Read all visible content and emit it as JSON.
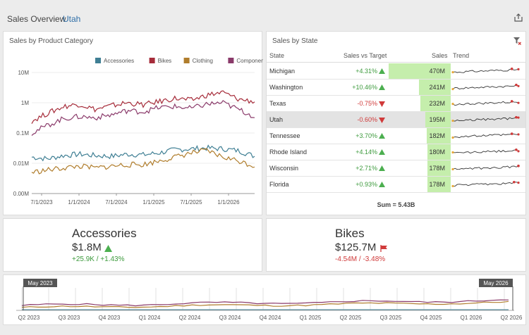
{
  "header": {
    "title": "Sales Overview",
    "filter": "Utah"
  },
  "category_panel": {
    "title": "Sales by Product Category",
    "chart_data": {
      "type": "line",
      "scale": "log",
      "ylim": [
        "0.00M",
        "10M"
      ],
      "y_ticks": [
        "10M",
        "1M",
        "0.1M",
        "0.01M",
        "0.00M"
      ],
      "x_ticks": [
        "7/1/2023",
        "1/1/2024",
        "7/1/2024",
        "1/1/2025",
        "7/1/2025",
        "1/1/2026"
      ],
      "legend_position": "top-right",
      "series": [
        {
          "name": "Accessories",
          "color": "#3f7f94",
          "values_m": [
            0.016,
            0.014,
            0.018,
            0.02,
            0.018,
            0.017,
            0.02,
            0.019,
            0.022,
            0.028,
            0.03,
            0.032,
            0.03,
            0.026,
            0.017
          ]
        },
        {
          "name": "Bikes",
          "color": "#a62c3a",
          "values_m": [
            0.25,
            0.45,
            0.75,
            0.9,
            0.6,
            0.8,
            1.0,
            0.85,
            1.1,
            1.4,
            1.2,
            1.8,
            2.2,
            1.3,
            1.1
          ]
        },
        {
          "name": "Clothing",
          "color": "#b07d2c",
          "values_m": [
            0.005,
            0.006,
            0.007,
            0.008,
            0.007,
            0.008,
            0.009,
            0.009,
            0.012,
            0.016,
            0.022,
            0.026,
            0.016,
            0.012,
            0.008
          ]
        },
        {
          "name": "Components",
          "color": "#8a3a6a",
          "values_m": [
            0.1,
            0.18,
            0.3,
            0.35,
            0.32,
            0.4,
            0.55,
            0.5,
            0.7,
            0.75,
            0.65,
            0.9,
            1.0,
            0.6,
            0.35
          ]
        }
      ]
    }
  },
  "state_panel": {
    "title": "Sales by State",
    "columns": {
      "state": "State",
      "target": "Sales vs Target",
      "sales": "Sales",
      "trend": "Trend"
    },
    "rows": [
      {
        "state": "Michigan",
        "delta": "+4.31%",
        "dir": "up",
        "sales": "470M",
        "bar": 1.0,
        "selected": false
      },
      {
        "state": "Washington",
        "delta": "+10.46%",
        "dir": "up",
        "sales": "241M",
        "bar": 0.51,
        "selected": false
      },
      {
        "state": "Texas",
        "delta": "-0.75%",
        "dir": "down",
        "sales": "232M",
        "bar": 0.49,
        "selected": false
      },
      {
        "state": "Utah",
        "delta": "-0.60%",
        "dir": "down",
        "sales": "195M",
        "bar": 0.41,
        "selected": true
      },
      {
        "state": "Tennessee",
        "delta": "+3.70%",
        "dir": "up",
        "sales": "182M",
        "bar": 0.39,
        "selected": false
      },
      {
        "state": "Rhode Island",
        "delta": "+4.14%",
        "dir": "up",
        "sales": "180M",
        "bar": 0.38,
        "selected": false
      },
      {
        "state": "Wisconsin",
        "delta": "+2.71%",
        "dir": "up",
        "sales": "178M",
        "bar": 0.38,
        "selected": false
      },
      {
        "state": "Florida",
        "delta": "+0.93%",
        "dir": "up",
        "sales": "178M",
        "bar": 0.38,
        "selected": false
      }
    ],
    "sum": "Sum = 5.43B"
  },
  "cards": {
    "accessories": {
      "name": "Accessories",
      "value": "$1.8M",
      "delta": "+25.9K / +1.43%"
    },
    "bikes": {
      "name": "Bikes",
      "value": "$125.7M",
      "delta": "-4.54M / -3.48%"
    }
  },
  "range": {
    "start_label": "May 2023",
    "end_label": "May 2026",
    "ticks": [
      "Q2 2023",
      "Q3 2023",
      "Q4 2023",
      "Q1 2024",
      "Q2 2024",
      "Q3 2024",
      "Q4 2024",
      "Q1 2025",
      "Q2 2025",
      "Q3 2025",
      "Q4 2025",
      "Q1 2026",
      "Q2 2026"
    ]
  },
  "colors": {
    "up": "#4caf50",
    "down": "#d03a3a",
    "accent": "#2f6fa8",
    "bar": "#c5eeac"
  }
}
